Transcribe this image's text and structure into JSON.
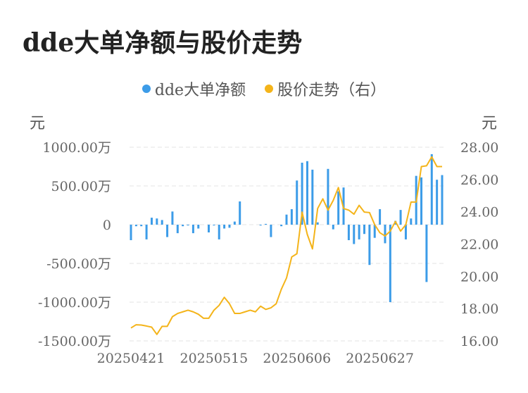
{
  "chart_data": {
    "type": "bar+line",
    "title": "dde大单净额与股价走势",
    "legend": [
      {
        "name": "dde大单净额",
        "color": "#3c9ce8"
      },
      {
        "name": "股价走势（右）",
        "color": "#f4b41a"
      }
    ],
    "legend_position": "top-center",
    "y_left": {
      "unit": "元",
      "ticks": [
        "1000.00万",
        "500.00万",
        "0",
        "-500.00万",
        "-1000.00万",
        "-1500.00万"
      ],
      "range": [
        -1500,
        1000
      ]
    },
    "y_right": {
      "unit": "元",
      "ticks": [
        "28.00",
        "26.00",
        "24.00",
        "22.00",
        "20.00",
        "18.00",
        "16.00"
      ],
      "range": [
        16,
        28
      ]
    },
    "x_tick_labels": [
      "20250421",
      "20250515",
      "20250606",
      "20250627"
    ],
    "x_tick_index": [
      0,
      16,
      32,
      48
    ],
    "grid": "horizontal-dashed",
    "series": [
      {
        "name": "dde大单净额",
        "unit": "万",
        "values": [
          -200,
          -20,
          -20,
          -190,
          90,
          80,
          60,
          -160,
          170,
          -110,
          -20,
          -10,
          -110,
          -50,
          0,
          -100,
          -10,
          -190,
          -50,
          -40,
          40,
          300,
          0,
          0,
          0,
          -10,
          10,
          -160,
          0,
          -20,
          130,
          200,
          570,
          800,
          820,
          710,
          30,
          0,
          720,
          -60,
          430,
          480,
          -200,
          -250,
          -190,
          -120,
          -520,
          -170,
          200,
          -240,
          -1000,
          50,
          190,
          -190,
          80,
          630,
          610,
          -740,
          910,
          580,
          640
        ]
      },
      {
        "name": "股价走势（右）",
        "values": [
          16.8,
          17.0,
          16.98,
          16.92,
          16.85,
          16.4,
          16.9,
          16.9,
          17.5,
          17.7,
          17.8,
          17.9,
          17.8,
          17.65,
          17.4,
          17.4,
          17.9,
          18.2,
          18.7,
          18.3,
          17.7,
          17.7,
          17.8,
          17.9,
          17.8,
          18.15,
          17.95,
          18.05,
          18.3,
          19.2,
          19.9,
          21.2,
          21.4,
          23.98,
          22.6,
          21.7,
          24.2,
          24.8,
          24.1,
          24.7,
          25.5,
          24.2,
          24.1,
          23.85,
          24.4,
          23.98,
          23.95,
          23.2,
          22.7,
          22.5,
          22.8,
          23.4,
          22.8,
          23.2,
          24.6,
          24.6,
          26.8,
          26.85,
          27.4,
          26.8,
          26.8
        ]
      }
    ]
  }
}
